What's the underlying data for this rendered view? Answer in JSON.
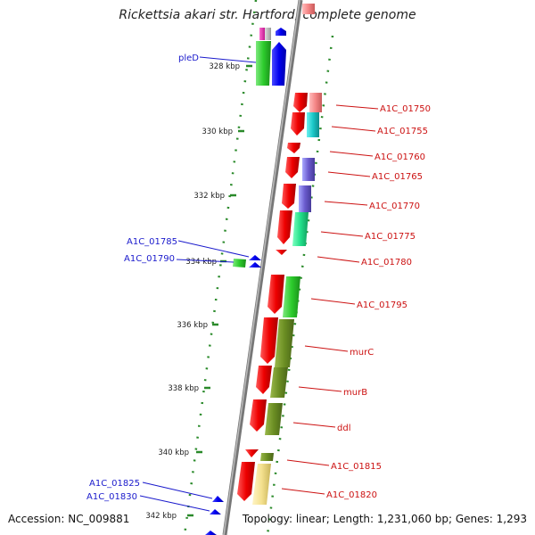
{
  "title": "Rickettsia akari str. Hartford, complete genome",
  "footer": {
    "accession": "Accession: NC_009881",
    "topology": "Topology: linear; Length: 1,231,060 bp; Genes: 1,293"
  },
  "colors": {
    "forward_label": "#1a1acc",
    "reverse_label": "#cc1111",
    "backbone": "#888888",
    "ticks": "#2a8a2a"
  },
  "ticks": [
    "328 kbp",
    "330 kbp",
    "332 kbp",
    "334 kbp",
    "336 kbp",
    "338 kbp",
    "340 kbp",
    "342 kbp"
  ],
  "left_labels": [
    "pleD",
    "A1C_01785",
    "A1C_01790",
    "A1C_01825",
    "A1C_01830"
  ],
  "right_labels": [
    "A1C_01750",
    "A1C_01755",
    "A1C_01760",
    "A1C_01765",
    "A1C_01770",
    "A1C_01775",
    "A1C_01780",
    "A1C_01795",
    "murC",
    "murB",
    "ddl",
    "A1C_01815",
    "A1C_01820"
  ]
}
